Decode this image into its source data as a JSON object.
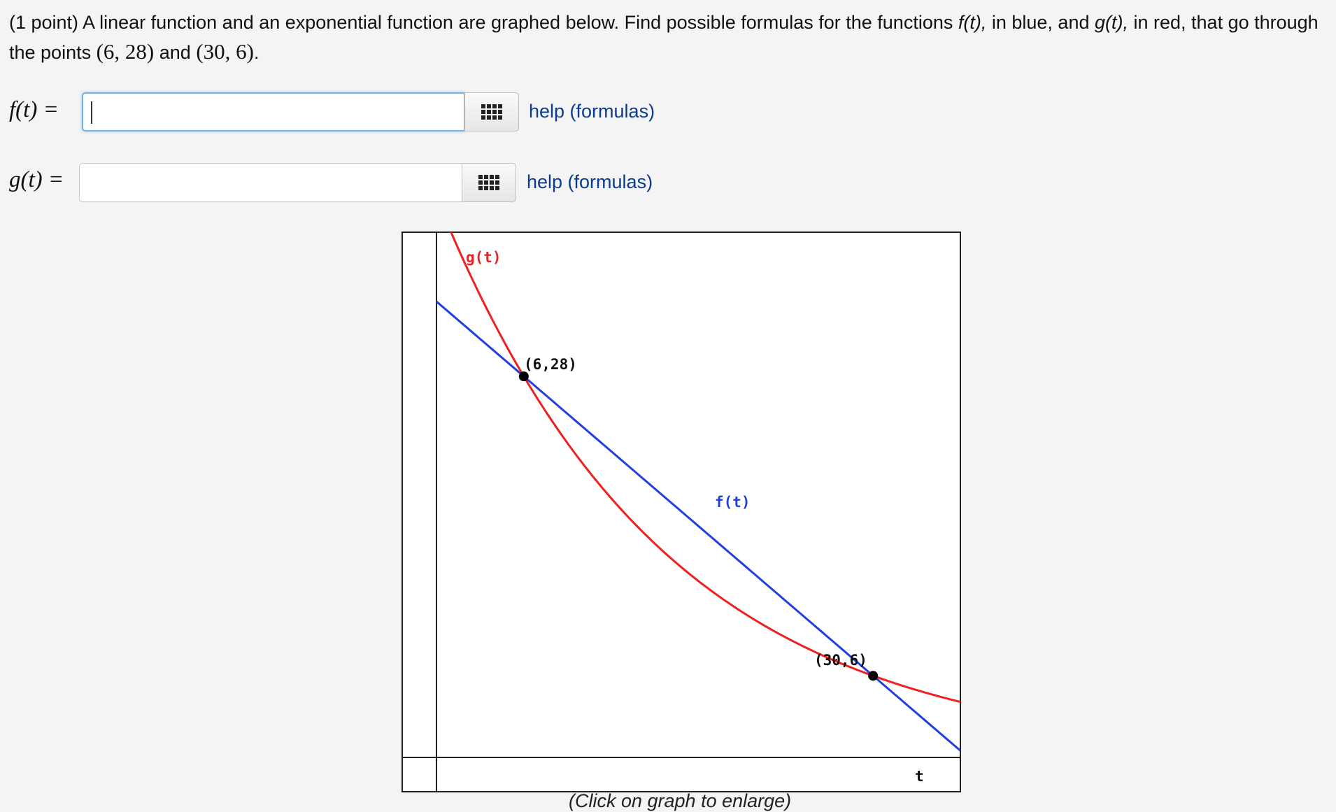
{
  "problem": {
    "lead": "(1 point) A linear function and an exponential function are graphed below. Find possible formulas for the functions ",
    "f_name": "f(t),",
    "mid1": " in blue, and ",
    "g_name": "g(t),",
    "mid2": " in red, that go through the points ",
    "point1": "(6, 28)",
    "and": " and ",
    "point2": "(30, 6)",
    "end": "."
  },
  "answers": [
    {
      "label": "f(t) =",
      "value": "",
      "help": "help (formulas)"
    },
    {
      "label": "g(t) =",
      "value": "",
      "help": "help (formulas)"
    }
  ],
  "graph": {
    "labels": {
      "g": "g(t)",
      "f": "f(t)",
      "p1": "(6,28)",
      "p2": "(30,6)",
      "t_axis": "t"
    },
    "colors": {
      "f": "#1f3fe0",
      "g": "#ee2020",
      "point": "#000000"
    }
  },
  "chart_data": {
    "type": "line",
    "xlabel": "t",
    "ylabel": "",
    "series": [
      {
        "name": "f(t)",
        "kind": "linear",
        "points": [
          [
            6,
            28
          ],
          [
            30,
            6
          ]
        ]
      },
      {
        "name": "g(t)",
        "kind": "exponential",
        "points": [
          [
            6,
            28
          ],
          [
            30,
            6
          ]
        ]
      }
    ],
    "marked_points": [
      [
        6,
        28
      ],
      [
        30,
        6
      ]
    ],
    "xlim": [
      0,
      36
    ],
    "ylim": [
      0,
      39
    ]
  },
  "caption": "(Click on graph to enlarge)"
}
